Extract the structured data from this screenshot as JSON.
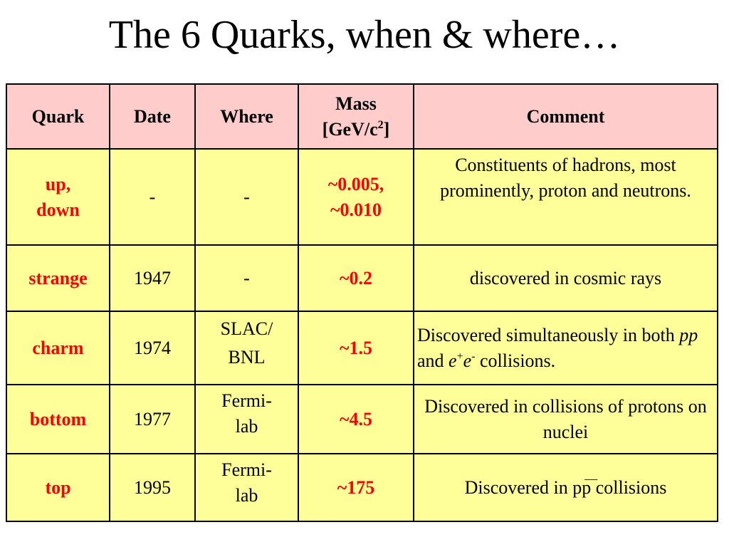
{
  "title": "The 6 Quarks, when & where…",
  "headers": {
    "quark": "Quark",
    "date": "Date",
    "where": "Where",
    "mass_line1": "Mass",
    "mass_line2a": "[GeV/c",
    "mass_line2_sup": "2",
    "mass_line2b": "]",
    "comment": "Comment"
  },
  "rows": [
    {
      "quark_line1": "up,",
      "quark_line2": "down",
      "date": "-",
      "where": "-",
      "mass_line1": "~0.005,",
      "mass_line2": "~0.010",
      "comment": "Constituents of hadrons, most prominently, proton and neutrons."
    },
    {
      "quark": "strange",
      "date": "1947",
      "where": "-",
      "mass": "~0.2",
      "comment": "discovered in cosmic rays"
    },
    {
      "quark": "charm",
      "date": "1974",
      "where_line1": "SLAC/",
      "where_line2": "BNL",
      "mass": "~1.5",
      "comment_a": "Discovered simultaneously in both ",
      "comment_pp": "pp",
      "comment_b": " and ",
      "comment_e1": "e",
      "comment_sup1": "+",
      "comment_e2": "e",
      "comment_sup2": "-",
      "comment_c": " collisions."
    },
    {
      "quark": "bottom",
      "date": "1977",
      "where_line1": "Fermi-",
      "where_line2": "lab",
      "mass": "~4.5",
      "comment": "Discovered in collisions of protons on nuclei"
    },
    {
      "quark": "top",
      "date": "1995",
      "where_line1": "Fermi-",
      "where_line2": "lab",
      "mass": "~175",
      "comment_a": "Discovered in ",
      "comment_p1": "p",
      "comment_bar": "—",
      "comment_p2": "p",
      "comment_b": " collisions"
    }
  ]
}
